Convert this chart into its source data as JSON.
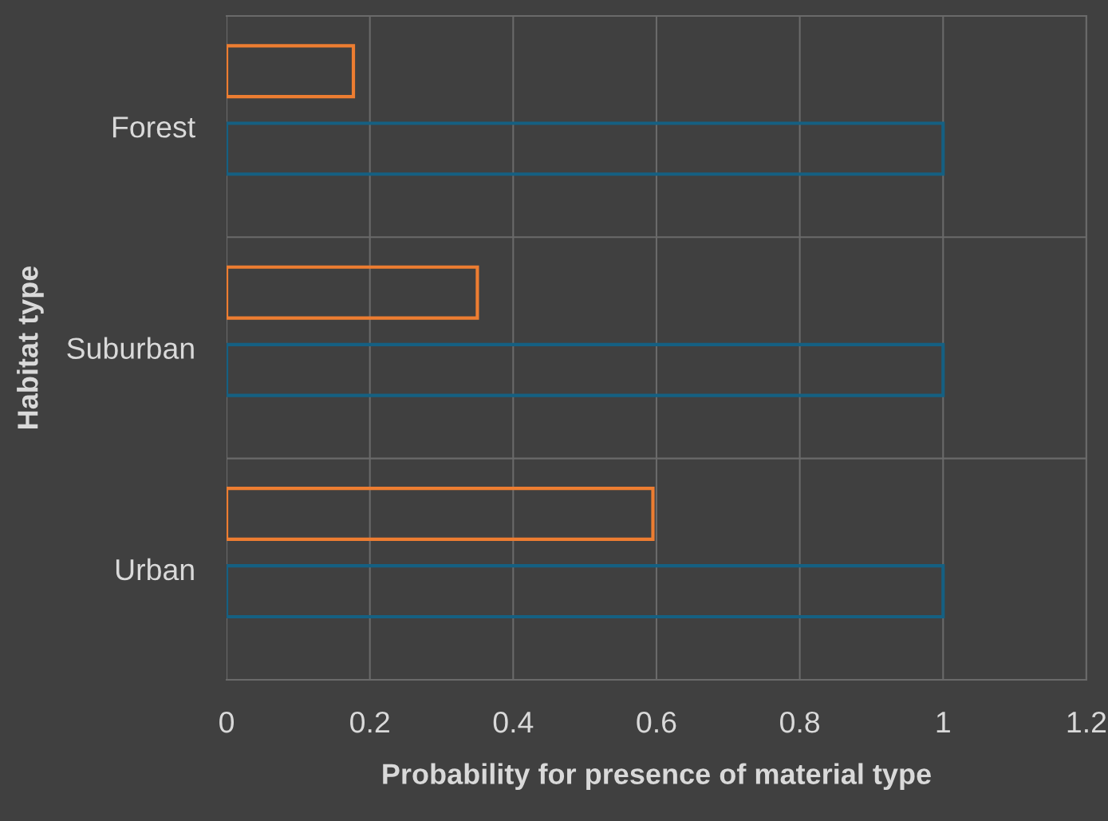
{
  "chart_data": {
    "type": "bar",
    "orientation": "horizontal",
    "xlabel": "Probability for presence of material type",
    "ylabel": "Habitat type",
    "categories": [
      "Forest",
      "Suburban",
      "Urban"
    ],
    "series": [
      {
        "color": "#ed7d31",
        "values": [
          0.177,
          0.35,
          0.595
        ]
      },
      {
        "color": "#156082",
        "values": [
          1,
          1,
          1
        ]
      }
    ],
    "xlim": [
      0,
      1.2
    ],
    "xticks": [
      0,
      0.2,
      0.4,
      0.6,
      0.8,
      1,
      1.2
    ],
    "grid": true
  }
}
